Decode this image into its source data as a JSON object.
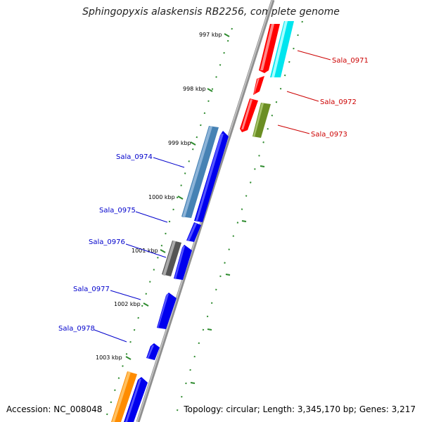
{
  "title": "Sphingopyxis alaskensis RB2256, complete genome",
  "footer": {
    "accession": "Accession: NC_008048",
    "summary": "Topology: circular; Length: 3,345,170 bp; Genes: 3,217"
  },
  "colors": {
    "backbone": "#8a8a8a",
    "tick": "#2e8b2e",
    "plus_label": "#cc0000",
    "minus_label": "#0000cc"
  },
  "ticks": [
    "997 kbp",
    "998 kbp",
    "999 kbp",
    "1000 kbp",
    "1001 kbp",
    "1002 kbp",
    "1003 kbp"
  ],
  "genes_plus": [
    {
      "label": "Sala_0971",
      "color": "#ff0000"
    },
    {
      "label": "Sala_0972",
      "color": "#ff0000"
    },
    {
      "label": "Sala_0973",
      "color": "#ff0000"
    }
  ],
  "genes_minus": [
    {
      "label": "Sala_0974",
      "color": "#0000ee"
    },
    {
      "label": "Sala_0975",
      "color": "#0000ee"
    },
    {
      "label": "Sala_0976",
      "color": "#0000ee"
    },
    {
      "label": "Sala_0977",
      "color": "#0000ee"
    },
    {
      "label": "Sala_0978",
      "color": "#0000ee"
    }
  ],
  "feature_tracks": [
    {
      "color": "#00e5ee"
    },
    {
      "color": "#6b8e23"
    },
    {
      "color": "#4682b4"
    },
    {
      "color": "#555555"
    },
    {
      "color": "#ff8c00"
    }
  ]
}
